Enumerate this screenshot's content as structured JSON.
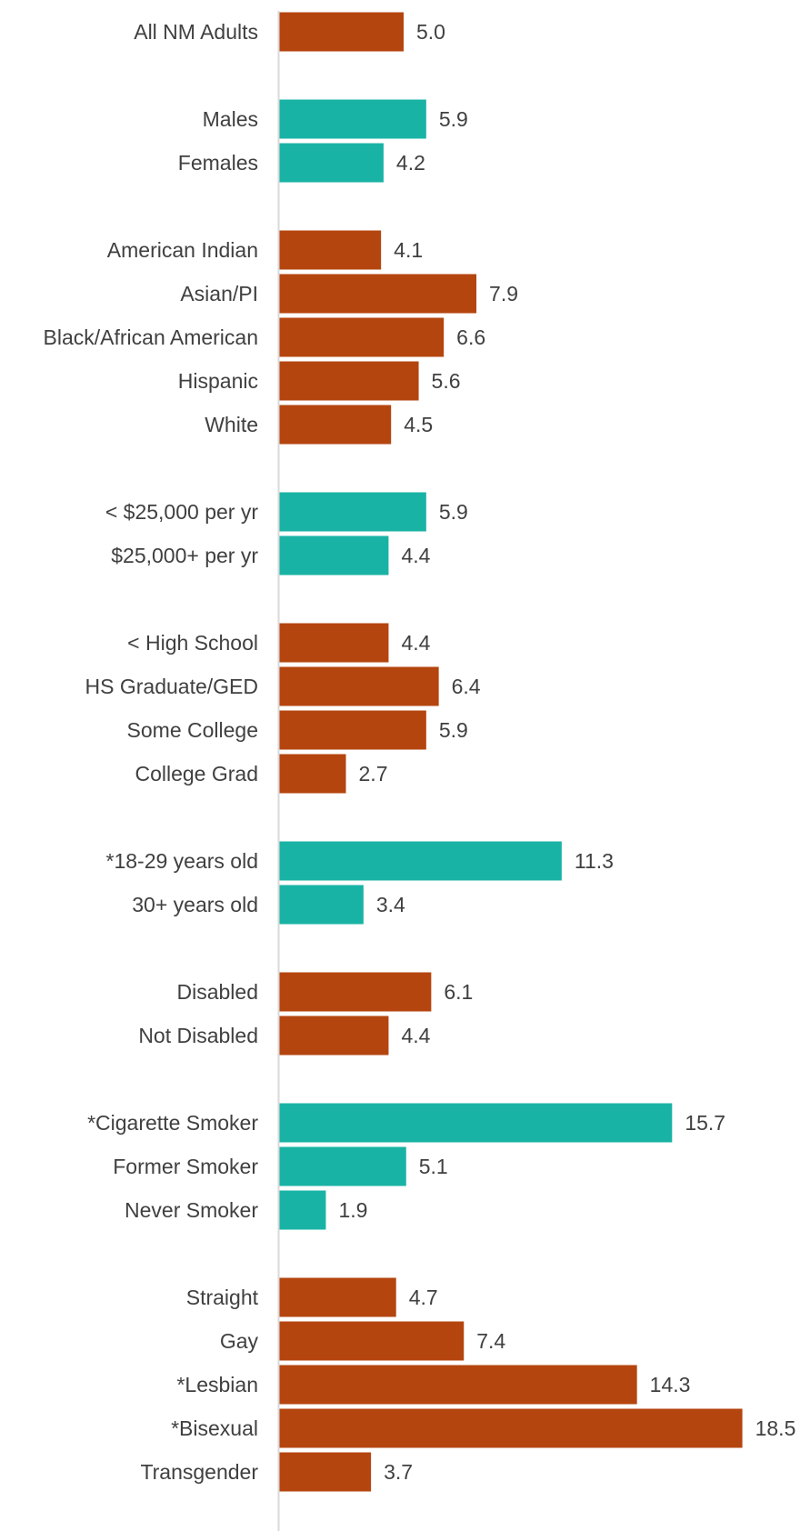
{
  "chart_data": {
    "type": "bar",
    "orientation": "horizontal",
    "xlim": [
      0,
      18.5
    ],
    "grid": false,
    "legend": "none",
    "colors": {
      "orange": "#B5450F",
      "teal": "#19B3A5",
      "axis": "#D9D9D9",
      "text": "#404040"
    },
    "groups": [
      {
        "color": "orange",
        "bars": [
          {
            "label": "All NM Adults",
            "value": 5.0,
            "display": "5.0"
          }
        ]
      },
      {
        "color": "teal",
        "bars": [
          {
            "label": "Males",
            "value": 5.9,
            "display": "5.9"
          },
          {
            "label": "Females",
            "value": 4.2,
            "display": "4.2"
          }
        ]
      },
      {
        "color": "orange",
        "bars": [
          {
            "label": "American Indian",
            "value": 4.1,
            "display": "4.1"
          },
          {
            "label": "Asian/PI",
            "value": 7.9,
            "display": "7.9"
          },
          {
            "label": "Black/African American",
            "value": 6.6,
            "display": "6.6"
          },
          {
            "label": "Hispanic",
            "value": 5.6,
            "display": "5.6"
          },
          {
            "label": "White",
            "value": 4.5,
            "display": "4.5"
          }
        ]
      },
      {
        "color": "teal",
        "bars": [
          {
            "label": "< $25,000 per yr",
            "value": 5.9,
            "display": "5.9"
          },
          {
            "label": "$25,000+ per yr",
            "value": 4.4,
            "display": "4.4"
          }
        ]
      },
      {
        "color": "orange",
        "bars": [
          {
            "label": "< High School",
            "value": 4.4,
            "display": "4.4"
          },
          {
            "label": "HS Graduate/GED",
            "value": 6.4,
            "display": "6.4"
          },
          {
            "label": "Some College",
            "value": 5.9,
            "display": "5.9"
          },
          {
            "label": "College Grad",
            "value": 2.7,
            "display": "2.7"
          }
        ]
      },
      {
        "color": "teal",
        "bars": [
          {
            "label": "*18-29 years old",
            "value": 11.3,
            "display": "11.3"
          },
          {
            "label": "30+ years old",
            "value": 3.4,
            "display": "3.4"
          }
        ]
      },
      {
        "color": "orange",
        "bars": [
          {
            "label": "Disabled",
            "value": 6.1,
            "display": "6.1"
          },
          {
            "label": "Not Disabled",
            "value": 4.4,
            "display": "4.4"
          }
        ]
      },
      {
        "color": "teal",
        "bars": [
          {
            "label": "*Cigarette Smoker",
            "value": 15.7,
            "display": "15.7"
          },
          {
            "label": "Former Smoker",
            "value": 5.1,
            "display": "5.1"
          },
          {
            "label": "Never Smoker",
            "value": 1.9,
            "display": "1.9"
          }
        ]
      },
      {
        "color": "orange",
        "bars": [
          {
            "label": "Straight",
            "value": 4.7,
            "display": "4.7"
          },
          {
            "label": "Gay",
            "value": 7.4,
            "display": "7.4"
          },
          {
            "label": "*Lesbian",
            "value": 14.3,
            "display": "14.3"
          },
          {
            "label": "*Bisexual",
            "value": 18.5,
            "display": "18.5"
          },
          {
            "label": "Transgender",
            "value": 3.7,
            "display": "3.7"
          }
        ]
      }
    ]
  }
}
